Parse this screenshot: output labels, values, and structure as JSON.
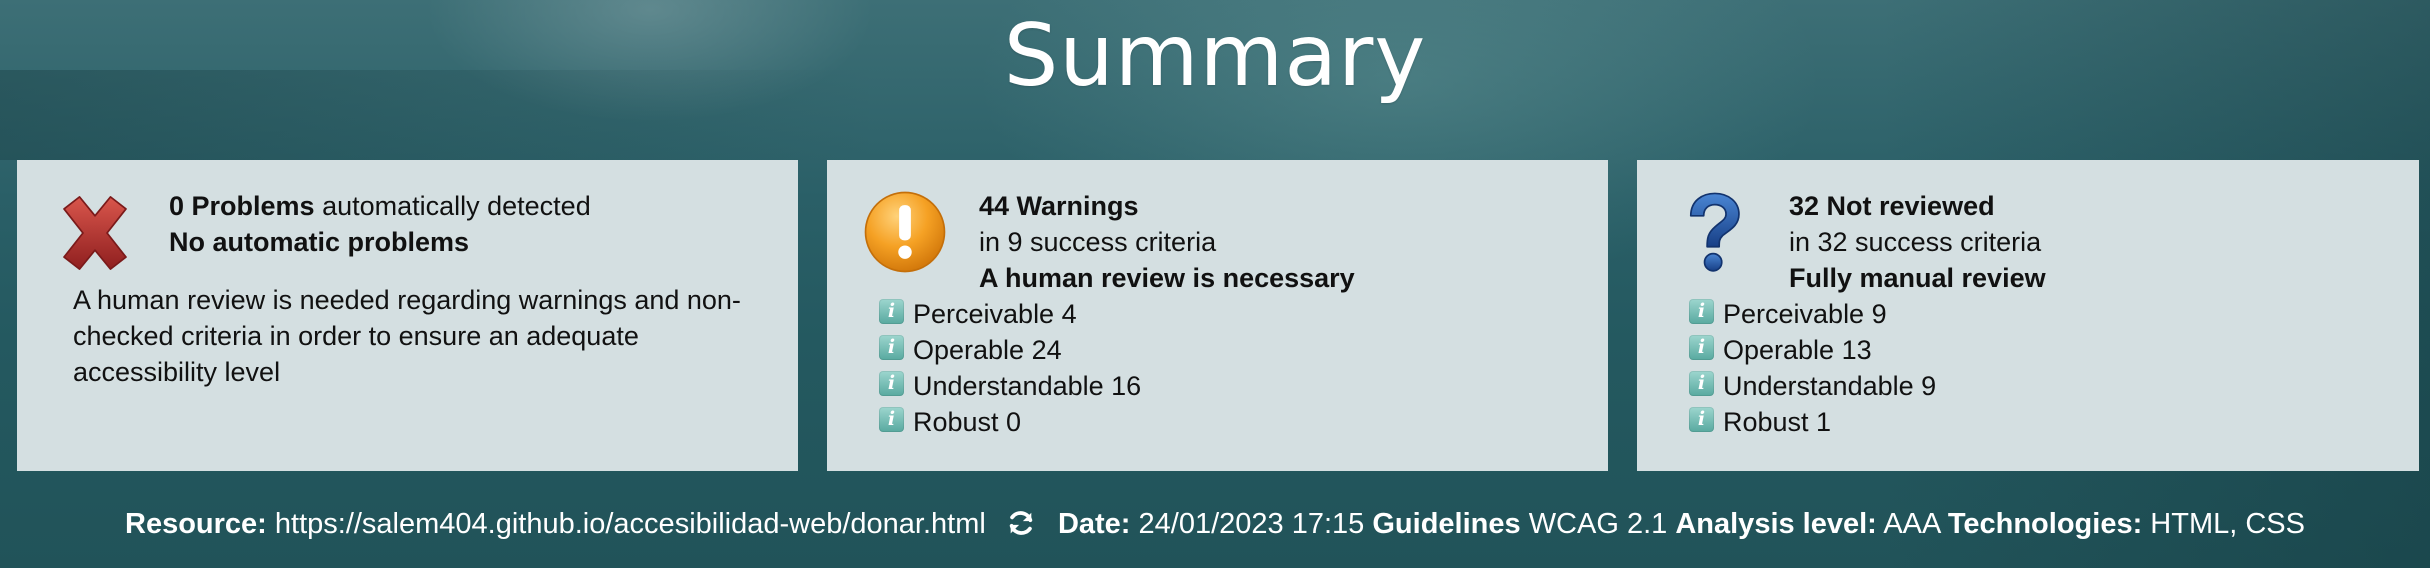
{
  "page": {
    "title": "Summary"
  },
  "problems": {
    "count": "0 Problems",
    "suffix": " automatically detected",
    "headline": "No automatic problems",
    "body": "A human review is needed regarding warnings and non-checked criteria in order to ensure an adequate accessibility level",
    "icon": "error-x-icon"
  },
  "warnings": {
    "count": "44 Warnings",
    "criteria": "in 9 success criteria",
    "headline": "A human review is necessary",
    "icon": "warning-exclamation-icon",
    "items": [
      {
        "label": "Perceivable 4"
      },
      {
        "label": "Operable 24"
      },
      {
        "label": "Understandable 16"
      },
      {
        "label": "Robust 0"
      }
    ]
  },
  "not_reviewed": {
    "count": "32 Not reviewed",
    "criteria": "in 32 success criteria",
    "headline": "Fully manual review",
    "icon": "question-mark-icon",
    "items": [
      {
        "label": "Perceivable 9"
      },
      {
        "label": "Operable 13"
      },
      {
        "label": "Understandable 9"
      },
      {
        "label": "Robust 1"
      }
    ]
  },
  "footer": {
    "resource_label": "Resource:",
    "resource_value": "https://salem404.github.io/accesibilidad-web/donar.html",
    "date_label": "Date:",
    "date_value": "24/01/2023 17:15",
    "guidelines_label": "Guidelines",
    "guidelines_value": "WCAG 2.1",
    "level_label": "Analysis level:",
    "level_value": "AAA",
    "tech_label": "Technologies:",
    "tech_value": "HTML, CSS"
  },
  "colors": {
    "card_bg": "#d4dfe1",
    "error_red": "#b52b2b",
    "warning_orange": "#f29a1c",
    "question_blue": "#1f4f9c",
    "info_teal": "#58a99f"
  }
}
